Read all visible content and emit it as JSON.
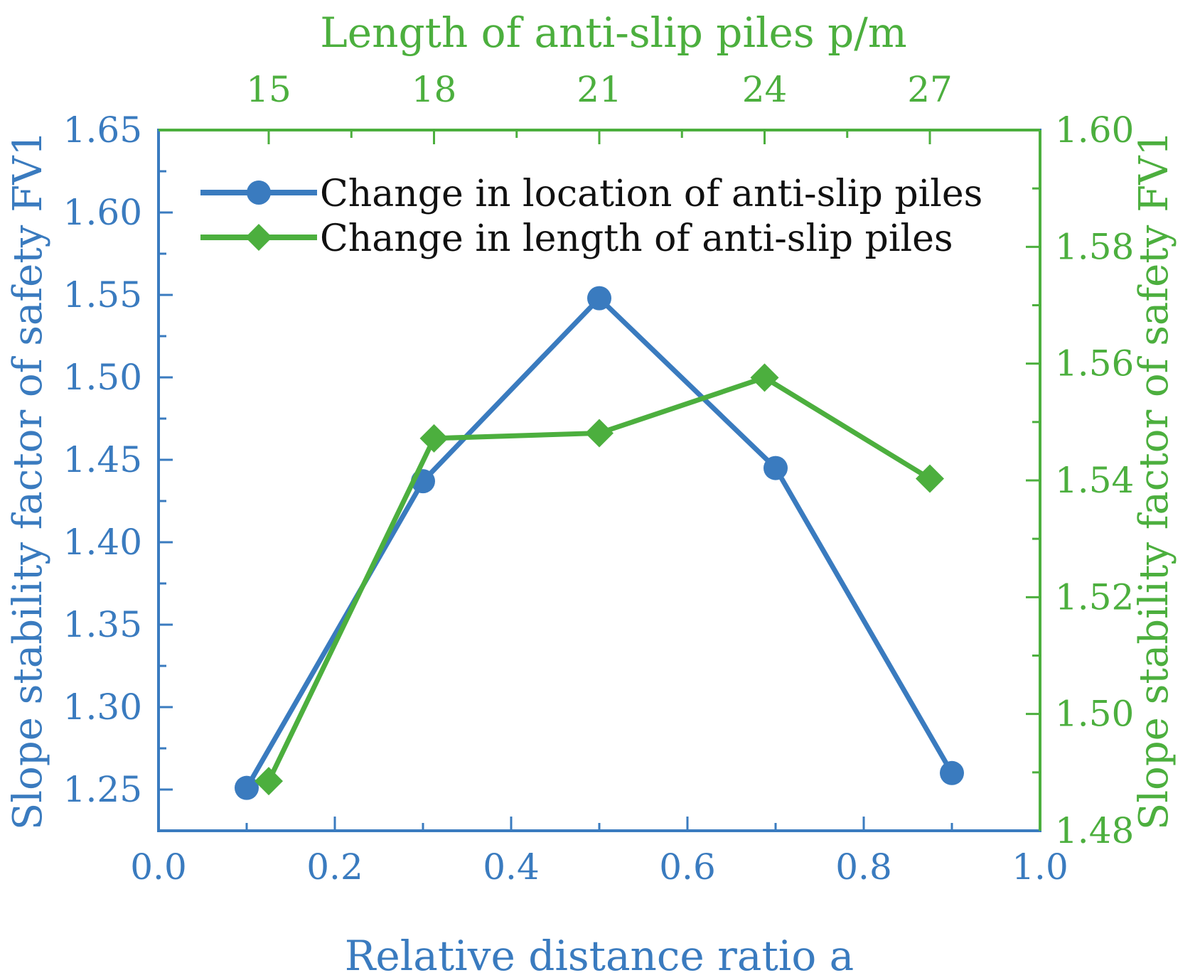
{
  "chart_data": {
    "type": "line",
    "title": "",
    "colors": {
      "blue": "#3a7bbf",
      "green": "#4caf3e",
      "legend_text": "#111111"
    },
    "x_axis_bottom": {
      "label": "Relative distance ratio a",
      "range": [
        0.0,
        1.0
      ],
      "ticks": [
        "0.0",
        "0.2",
        "0.4",
        "0.6",
        "0.8",
        "1.0"
      ],
      "tick_values": [
        0.0,
        0.2,
        0.4,
        0.6,
        0.8,
        1.0
      ]
    },
    "x_axis_top": {
      "label": "Length of anti-slip piles p/m",
      "range": [
        13.0,
        29.0
      ],
      "ticks": [
        "15",
        "18",
        "21",
        "24",
        "27"
      ],
      "tick_values": [
        15,
        18,
        21,
        24,
        27
      ]
    },
    "y_axis_left": {
      "label": "Slope stability factor of safety FV1",
      "range": [
        1.225,
        1.65
      ],
      "ticks": [
        "1.25",
        "1.30",
        "1.35",
        "1.40",
        "1.45",
        "1.50",
        "1.55",
        "1.60",
        "1.65"
      ],
      "tick_values": [
        1.25,
        1.3,
        1.35,
        1.4,
        1.45,
        1.5,
        1.55,
        1.6,
        1.65
      ]
    },
    "y_axis_right": {
      "label": "Slope stability factor of safety FV1",
      "range": [
        1.48,
        1.6
      ],
      "ticks": [
        "1.48",
        "1.50",
        "1.52",
        "1.54",
        "1.56",
        "1.58",
        "1.60"
      ],
      "tick_values": [
        1.48,
        1.5,
        1.52,
        1.54,
        1.56,
        1.58,
        1.6
      ]
    },
    "series": [
      {
        "name": "Change in location of anti-slip piles",
        "axis": "bottom-left",
        "marker": "circle",
        "color": "#3a7bbf",
        "x": [
          0.1,
          0.3,
          0.5,
          0.7,
          0.9
        ],
        "y": [
          1.251,
          1.437,
          1.548,
          1.445,
          1.26
        ]
      },
      {
        "name": "Change in length of anti-slip piles",
        "axis": "top-right",
        "marker": "diamond",
        "color": "#4caf3e",
        "x": [
          15,
          18,
          21,
          24,
          27
        ],
        "y": [
          1.4885,
          1.5472,
          1.5481,
          1.5576,
          1.5403
        ]
      }
    ],
    "legend": {
      "position": "top-left-inside"
    }
  }
}
